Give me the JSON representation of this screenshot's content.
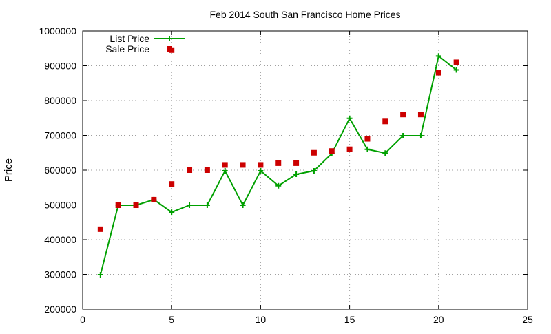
{
  "chart_data": {
    "type": "line",
    "title": "Feb 2014 South San Francisco Home Prices",
    "xlabel": "",
    "ylabel": "Price",
    "xlim": [
      0,
      25
    ],
    "ylim": [
      200000,
      1000000
    ],
    "x_ticks": [
      0,
      5,
      10,
      15,
      20,
      25
    ],
    "y_ticks": [
      200000,
      300000,
      400000,
      500000,
      600000,
      700000,
      800000,
      900000,
      1000000
    ],
    "grid": true,
    "legend_position": "top-left",
    "series": [
      {
        "name": "List Price",
        "style": "line-with-plus-markers",
        "color": "#00a000",
        "x": [
          1,
          2,
          3,
          4,
          5,
          6,
          7,
          8,
          9,
          10,
          11,
          12,
          13,
          14,
          15,
          16,
          17,
          18,
          19,
          20,
          21
        ],
        "values": [
          299000,
          499000,
          499000,
          515000,
          479000,
          499000,
          499000,
          598000,
          499000,
          598000,
          555000,
          588000,
          598000,
          648000,
          749000,
          660000,
          649000,
          699000,
          699000,
          928000,
          888000
        ]
      },
      {
        "name": "Sale Price",
        "style": "square-markers",
        "color": "#cc0000",
        "x": [
          1,
          2,
          3,
          4,
          5,
          5,
          6,
          7,
          8,
          9,
          10,
          11,
          12,
          13,
          14,
          15,
          16,
          17,
          18,
          19,
          20,
          21
        ],
        "values": [
          430000,
          499000,
          499000,
          515000,
          560000,
          945000,
          600000,
          600000,
          615000,
          615000,
          615000,
          620000,
          620000,
          650000,
          655000,
          660000,
          690000,
          740000,
          760000,
          760000,
          880000,
          910000
        ]
      }
    ]
  }
}
